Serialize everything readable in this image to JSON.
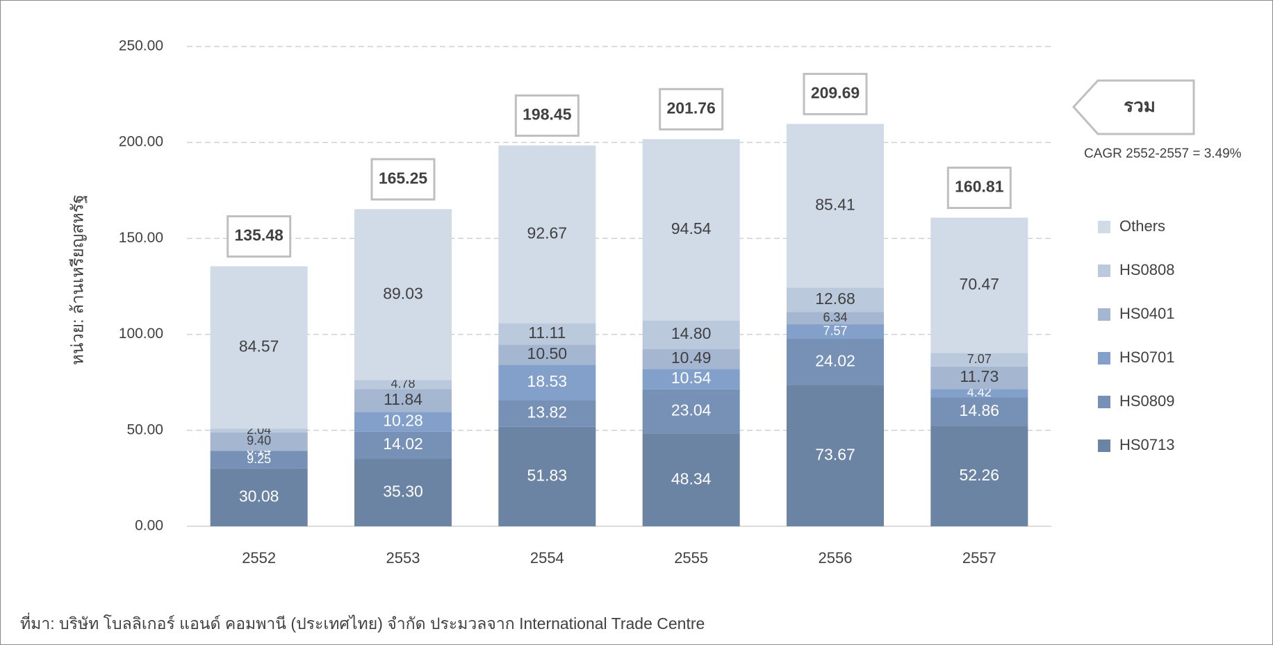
{
  "chart_data": {
    "type": "stacked_bar",
    "y_axis_label": "หน่วย: ล้านเหรียญสหรัฐ",
    "categories": [
      "2552",
      "2553",
      "2554",
      "2555",
      "2556",
      "2557"
    ],
    "series": [
      {
        "name": "HS0713",
        "color": "#6b84a3",
        "values": [
          30.08,
          35.3,
          51.83,
          48.34,
          73.67,
          52.26
        ],
        "value_labels": [
          "30.08",
          "35.30",
          "51.83",
          "48.34",
          "73.67",
          "52.26"
        ]
      },
      {
        "name": "HS0809",
        "color": "#7791b6",
        "values": [
          9.25,
          14.02,
          13.82,
          23.04,
          24.02,
          14.86
        ],
        "value_labels": [
          "9.25",
          "14.02",
          "13.82",
          "23.04",
          "24.02",
          "14.86"
        ]
      },
      {
        "name": "HS0701",
        "color": "#82a0c9",
        "values": [
          0.14,
          10.28,
          18.53,
          10.54,
          7.57,
          4.42
        ],
        "value_labels": [
          "0.14",
          "10.28",
          "18.53",
          "10.54",
          "7.57",
          "4.42"
        ]
      },
      {
        "name": "HS0401",
        "color": "#a4b6d0",
        "values": [
          9.4,
          11.84,
          10.5,
          10.49,
          6.34,
          11.73
        ],
        "value_labels": [
          "9.40",
          "11.84",
          "10.50",
          "10.49",
          "6.34",
          "11.73"
        ]
      },
      {
        "name": "HS0808",
        "color": "#bbc9dd",
        "values": [
          2.04,
          4.78,
          11.11,
          14.8,
          12.68,
          7.07
        ],
        "value_labels": [
          "2.04",
          "4.78",
          "11.11",
          "14.80",
          "12.68",
          "7.07"
        ]
      },
      {
        "name": "Others",
        "color": "#d1dae7",
        "values": [
          84.57,
          89.03,
          92.67,
          94.54,
          85.41,
          70.47
        ],
        "value_labels": [
          "84.57",
          "89.03",
          "92.67",
          "94.54",
          "85.41",
          "70.47"
        ]
      }
    ],
    "totals": [
      135.48,
      165.25,
      198.45,
      201.76,
      209.69,
      160.81
    ],
    "total_callout": "รวม",
    "annotation": "CAGR 2552-2557 = 3.49%",
    "ylim": [
      0,
      250
    ],
    "yticks": [
      {
        "value": 0,
        "label": "0.00"
      },
      {
        "value": 50,
        "label": "50.00"
      },
      {
        "value": 100,
        "label": "100.00"
      },
      {
        "value": 150,
        "label": "150.00"
      },
      {
        "value": 200,
        "label": "200.00"
      },
      {
        "value": 250,
        "label": "250.00"
      }
    ],
    "grid": true,
    "legend": "right",
    "source": "ที่มา: บริษัท โบลลิเกอร์ แอนด์ คอมพานี (ประเทศไทย) จำกัด ประมวลจาก International Trade Centre"
  }
}
